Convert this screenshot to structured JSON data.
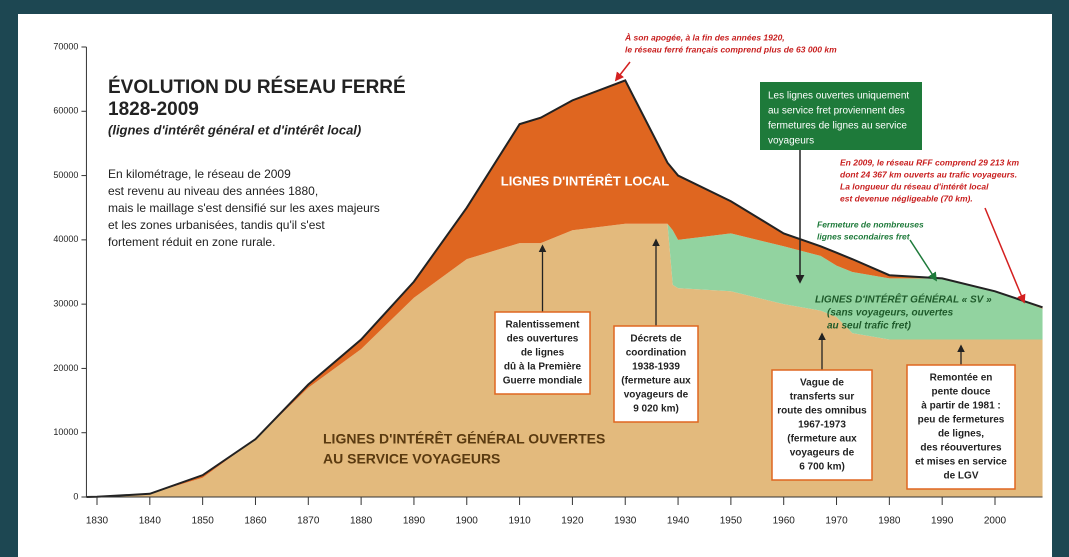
{
  "chart_data": {
    "type": "stacked-area",
    "title": "ÉVOLUTION DU RÉSEAU FERRÉ",
    "subtitle": "1828-2009",
    "subtitle2": "(lignes d'intérêt général et d'intérêt local)",
    "intro": [
      "En kilométrage, le réseau de 2009",
      "est revenu au niveau des années 1880,",
      "mais le maillage s'est densifié sur les axes majeurs",
      "et les zones urbanisées, tandis qu'il s'est",
      "fortement réduit en zone rurale."
    ],
    "x": [
      1828,
      1830,
      1840,
      1850,
      1860,
      1870,
      1880,
      1890,
      1900,
      1910,
      1914,
      1920,
      1930,
      1938,
      1939,
      1940,
      1950,
      1960,
      1967,
      1970,
      1973,
      1980,
      1990,
      2000,
      2009
    ],
    "series": [
      {
        "color": "#e3ba7d",
        "values": [
          0,
          30,
          500,
          3000,
          9000,
          17000,
          23000,
          31000,
          37000,
          39500,
          39500,
          41500,
          42500,
          42500,
          33000,
          32500,
          32000,
          30000,
          29000,
          28000,
          25500,
          24500,
          24500,
          24500,
          24500
        ]
      },
      {
        "color": "#92d3a0",
        "values": [
          0,
          0,
          0,
          0,
          0,
          0,
          0,
          0,
          0,
          0,
          0,
          0,
          0,
          0,
          8500,
          7500,
          9000,
          9000,
          8500,
          8000,
          9500,
          9500,
          9500,
          7500,
          4800
        ]
      },
      {
        "color": "#df6620",
        "values": [
          0,
          0,
          0,
          400,
          0,
          500,
          1500,
          2500,
          8000,
          18500,
          19500,
          20200,
          22300,
          9500,
          9500,
          10000,
          5000,
          2000,
          1500,
          2000,
          2000,
          500,
          0,
          0,
          200
        ]
      }
    ],
    "xlim": [
      1828,
      2009
    ],
    "xticks": [
      1830,
      1840,
      1850,
      1860,
      1870,
      1880,
      1890,
      1900,
      1910,
      1920,
      1930,
      1940,
      1950,
      1960,
      1970,
      1980,
      1990,
      2000
    ],
    "ylim": [
      0,
      70000
    ],
    "yticks": [
      0,
      10000,
      20000,
      30000,
      40000,
      50000,
      60000,
      70000
    ],
    "area_labels": [
      [
        "LIGNES D'INTÉRÊT LOCAL"
      ],
      [
        "LIGNES D'INTÉRÊT GÉNÉRAL OUVERTES",
        "AU SERVICE VOYAGEURS"
      ],
      [
        "LIGNES D'INTÉRÊT GÉNÉRAL « SV »",
        "(sans voyageurs, ouvertes",
        "au seul trafic fret)"
      ]
    ],
    "notes": [
      [
        "À son apogée, à la fin des années 1920,",
        "le réseau ferré français comprend plus de 63 000 km"
      ],
      [
        "En 2009, le réseau RFF comprend 29 213 km",
        "dont 24 367 km ouverts au trafic voyageurs.",
        "La longueur du réseau d'intérêt local",
        "est devenue négligeable (70 km)."
      ],
      [
        "Fermeture de nombreuses",
        "lignes secondaires fret"
      ]
    ],
    "green_box": [
      "Les lignes ouvertes uniquement",
      "au service fret proviennent des",
      "fermetures de lignes au service",
      "voyageurs"
    ],
    "boxes": [
      [
        "Ralentissement",
        "des ouvertures",
        "de lignes",
        "dû à la Première",
        "Guerre mondiale"
      ],
      [
        "Décrets de",
        "coordination",
        "1938-1939",
        "(fermeture aux",
        "voyageurs de",
        "9 020 km)"
      ],
      [
        "Vague de",
        "transferts sur",
        "route des omnibus",
        "1967-1973",
        "(fermeture aux",
        "voyageurs de",
        "6 700 km)"
      ],
      [
        "Remontée en",
        "pente douce",
        "à partir de 1981 :",
        "peu de fermetures",
        "de lignes,",
        "des réouvertures",
        "et mises en service",
        "de LGV"
      ]
    ]
  }
}
